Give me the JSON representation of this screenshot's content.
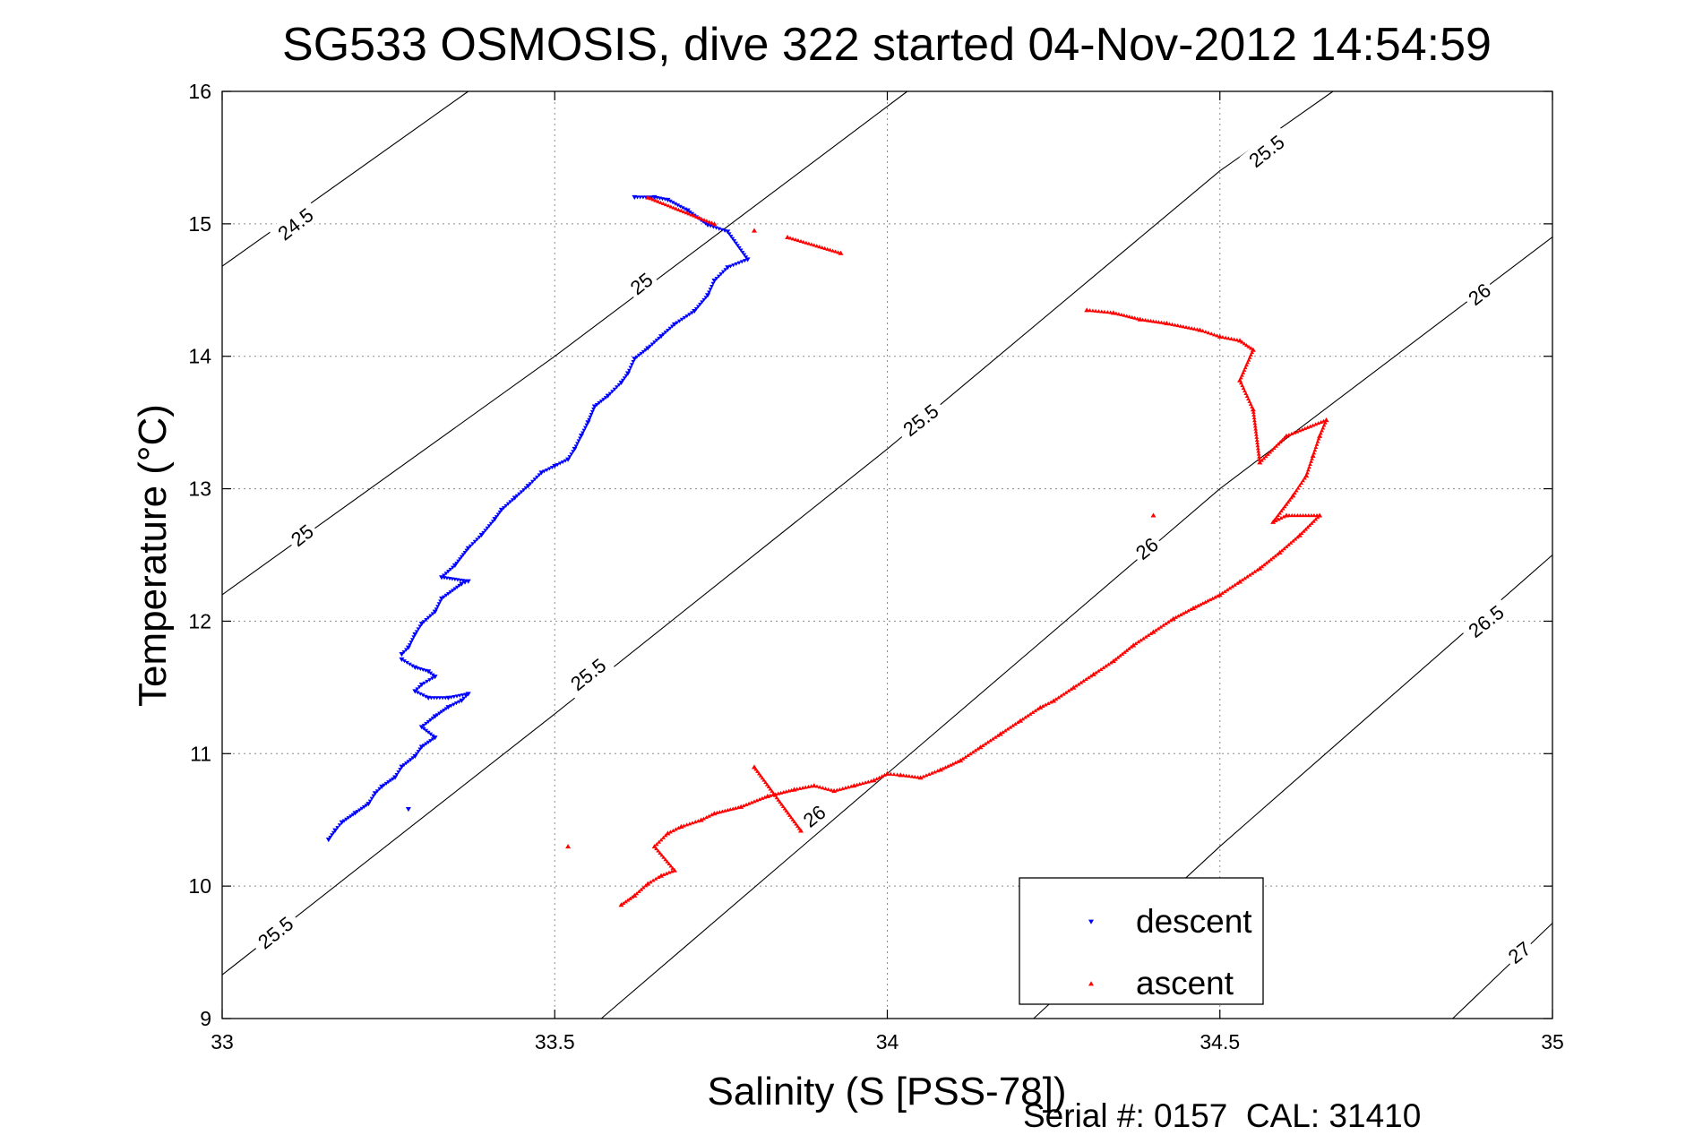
{
  "chart_data": {
    "type": "scatter",
    "title": "SG533 OSMOSIS, dive 322 started 04-Nov-2012 14:54:59",
    "xlabel": "Salinity (S [PSS-78])",
    "ylabel": "Temperature (°C)",
    "footer": "Serial #: 0157  CAL: 31410",
    "xlim": [
      33,
      35
    ],
    "ylim": [
      9,
      16
    ],
    "x_ticks": [
      33,
      33.5,
      34,
      34.5,
      35
    ],
    "x_tick_labels": [
      "33",
      "33.5",
      "34",
      "34.5",
      "35"
    ],
    "y_ticks": [
      9,
      10,
      11,
      12,
      13,
      14,
      15,
      16
    ],
    "y_tick_labels": [
      "9",
      "10",
      "11",
      "12",
      "13",
      "14",
      "15",
      "16"
    ],
    "grid": true,
    "legend_position": "bottom-right",
    "legend": [
      {
        "label": "descent",
        "marker": "triangle-down",
        "color": "#0000ff"
      },
      {
        "label": "ascent",
        "marker": "triangle-up",
        "color": "#ff0000"
      }
    ],
    "isopycnals": [
      {
        "label": "24.5",
        "points": [
          [
            33,
            14.68
          ],
          [
            33.37,
            16
          ]
        ]
      },
      {
        "label": "25",
        "points": [
          [
            33,
            12.2
          ],
          [
            33.5,
            14.0
          ],
          [
            34.03,
            16
          ]
        ]
      },
      {
        "label": "25.5",
        "points": [
          [
            33,
            9.33
          ],
          [
            33.5,
            11.3
          ],
          [
            34,
            13.3
          ],
          [
            34.5,
            15.4
          ],
          [
            34.67,
            16
          ]
        ]
      },
      {
        "label": "26",
        "points": [
          [
            33.57,
            9
          ],
          [
            34,
            10.85
          ],
          [
            34.5,
            13.0
          ],
          [
            35,
            14.9
          ]
        ]
      },
      {
        "label": "26.5",
        "points": [
          [
            34.22,
            9
          ],
          [
            34.5,
            10.3
          ],
          [
            35,
            12.5
          ]
        ]
      },
      {
        "label": "27",
        "points": [
          [
            34.85,
            9
          ],
          [
            35,
            9.72
          ]
        ]
      }
    ],
    "contour_labels": [
      {
        "text": "24.5",
        "x": 33.11,
        "y": 15.0
      },
      {
        "text": "25",
        "x": 33.63,
        "y": 14.55
      },
      {
        "text": "25",
        "x": 33.12,
        "y": 12.65
      },
      {
        "text": "25.5",
        "x": 34.57,
        "y": 15.55
      },
      {
        "text": "25.5",
        "x": 34.05,
        "y": 13.52
      },
      {
        "text": "25.5",
        "x": 33.55,
        "y": 11.6
      },
      {
        "text": "25.5",
        "x": 33.08,
        "y": 9.65
      },
      {
        "text": "26",
        "x": 34.89,
        "y": 14.47
      },
      {
        "text": "26",
        "x": 34.39,
        "y": 12.55
      },
      {
        "text": "26",
        "x": 33.89,
        "y": 10.53
      },
      {
        "text": "26.5",
        "x": 34.9,
        "y": 12.0
      },
      {
        "text": "27",
        "x": 34.95,
        "y": 9.5
      }
    ],
    "series": [
      {
        "name": "descent",
        "color": "#0000ff",
        "marker": "triangle-down",
        "points": [
          [
            33.62,
            15.2
          ],
          [
            33.65,
            15.2
          ],
          [
            33.67,
            15.18
          ],
          [
            33.7,
            15.1
          ],
          [
            33.73,
            14.99
          ],
          [
            33.76,
            14.94
          ],
          [
            33.79,
            14.73
          ],
          [
            33.76,
            14.67
          ],
          [
            33.74,
            14.57
          ],
          [
            33.73,
            14.46
          ],
          [
            33.71,
            14.34
          ],
          [
            33.68,
            14.24
          ],
          [
            33.66,
            14.15
          ],
          [
            33.64,
            14.06
          ],
          [
            33.62,
            13.98
          ],
          [
            33.61,
            13.87
          ],
          [
            33.6,
            13.8
          ],
          [
            33.58,
            13.7
          ],
          [
            33.56,
            13.62
          ],
          [
            33.55,
            13.5
          ],
          [
            33.54,
            13.4
          ],
          [
            33.53,
            13.3
          ],
          [
            33.52,
            13.22
          ],
          [
            33.5,
            13.17
          ],
          [
            33.48,
            13.12
          ],
          [
            33.46,
            13.02
          ],
          [
            33.44,
            12.93
          ],
          [
            33.42,
            12.84
          ],
          [
            33.41,
            12.77
          ],
          [
            33.39,
            12.65
          ],
          [
            33.37,
            12.55
          ],
          [
            33.35,
            12.42
          ],
          [
            33.33,
            12.33
          ],
          [
            33.37,
            12.3
          ],
          [
            33.36,
            12.28
          ],
          [
            33.33,
            12.17
          ],
          [
            33.32,
            12.07
          ],
          [
            33.3,
            11.98
          ],
          [
            33.29,
            11.9
          ],
          [
            33.28,
            11.8
          ],
          [
            33.27,
            11.75
          ],
          [
            33.27,
            11.71
          ],
          [
            33.29,
            11.65
          ],
          [
            33.31,
            11.62
          ],
          [
            33.32,
            11.58
          ],
          [
            33.3,
            11.52
          ],
          [
            33.29,
            11.47
          ],
          [
            33.31,
            11.42
          ],
          [
            33.34,
            11.42
          ],
          [
            33.37,
            11.45
          ],
          [
            33.36,
            11.4
          ],
          [
            33.34,
            11.35
          ],
          [
            33.32,
            11.28
          ],
          [
            33.3,
            11.2
          ],
          [
            33.32,
            11.12
          ],
          [
            33.3,
            11.05
          ],
          [
            33.29,
            10.98
          ],
          [
            33.27,
            10.9
          ],
          [
            33.26,
            10.82
          ],
          [
            33.24,
            10.75
          ],
          [
            33.23,
            10.7
          ],
          [
            33.22,
            10.62
          ],
          [
            33.2,
            10.55
          ],
          [
            33.18,
            10.48
          ],
          [
            33.17,
            10.42
          ],
          [
            33.16,
            10.35
          ],
          [
            33.28,
            10.58
          ]
        ]
      },
      {
        "name": "ascent",
        "color": "#ff0000",
        "marker": "triangle-up",
        "points": [
          [
            33.6,
            9.86
          ],
          [
            33.62,
            9.93
          ],
          [
            33.64,
            10.02
          ],
          [
            33.66,
            10.08
          ],
          [
            33.68,
            10.12
          ],
          [
            33.65,
            10.3
          ],
          [
            33.67,
            10.4
          ],
          [
            33.69,
            10.45
          ],
          [
            33.72,
            10.5
          ],
          [
            33.74,
            10.55
          ],
          [
            33.78,
            10.6
          ],
          [
            33.82,
            10.68
          ],
          [
            33.86,
            10.73
          ],
          [
            33.89,
            10.76
          ],
          [
            33.92,
            10.72
          ],
          [
            33.95,
            10.76
          ],
          [
            33.98,
            10.8
          ],
          [
            34.0,
            10.85
          ],
          [
            34.02,
            10.84
          ],
          [
            34.05,
            10.82
          ],
          [
            34.08,
            10.88
          ],
          [
            34.11,
            10.95
          ],
          [
            34.14,
            11.05
          ],
          [
            34.17,
            11.15
          ],
          [
            34.2,
            11.25
          ],
          [
            34.23,
            11.35
          ],
          [
            34.25,
            11.4
          ],
          [
            34.28,
            11.5
          ],
          [
            34.31,
            11.6
          ],
          [
            34.34,
            11.7
          ],
          [
            34.37,
            11.82
          ],
          [
            34.4,
            11.92
          ],
          [
            34.43,
            12.02
          ],
          [
            34.46,
            12.1
          ],
          [
            34.5,
            12.2
          ],
          [
            34.53,
            12.3
          ],
          [
            34.56,
            12.4
          ],
          [
            34.59,
            12.52
          ],
          [
            34.62,
            12.65
          ],
          [
            34.65,
            12.8
          ],
          [
            34.6,
            12.8
          ],
          [
            34.58,
            12.75
          ],
          [
            34.61,
            12.95
          ],
          [
            34.63,
            13.1
          ],
          [
            34.64,
            13.25
          ],
          [
            34.65,
            13.4
          ],
          [
            34.66,
            13.52
          ],
          [
            34.6,
            13.4
          ],
          [
            34.56,
            13.2
          ],
          [
            34.55,
            13.6
          ],
          [
            34.53,
            13.82
          ],
          [
            34.55,
            14.05
          ],
          [
            34.53,
            14.12
          ],
          [
            34.5,
            14.15
          ],
          [
            34.47,
            14.2
          ],
          [
            34.42,
            14.25
          ],
          [
            34.38,
            14.28
          ],
          [
            34.34,
            14.33
          ],
          [
            34.3,
            14.35
          ],
          [
            33.52,
            10.3
          ],
          [
            33.87,
            10.42
          ],
          [
            33.8,
            10.9
          ],
          [
            34.4,
            12.8
          ],
          [
            33.8,
            14.95
          ],
          [
            33.93,
            14.78
          ],
          [
            33.85,
            14.9
          ],
          [
            33.64,
            15.2
          ],
          [
            33.74,
            15.0
          ]
        ]
      }
    ]
  }
}
